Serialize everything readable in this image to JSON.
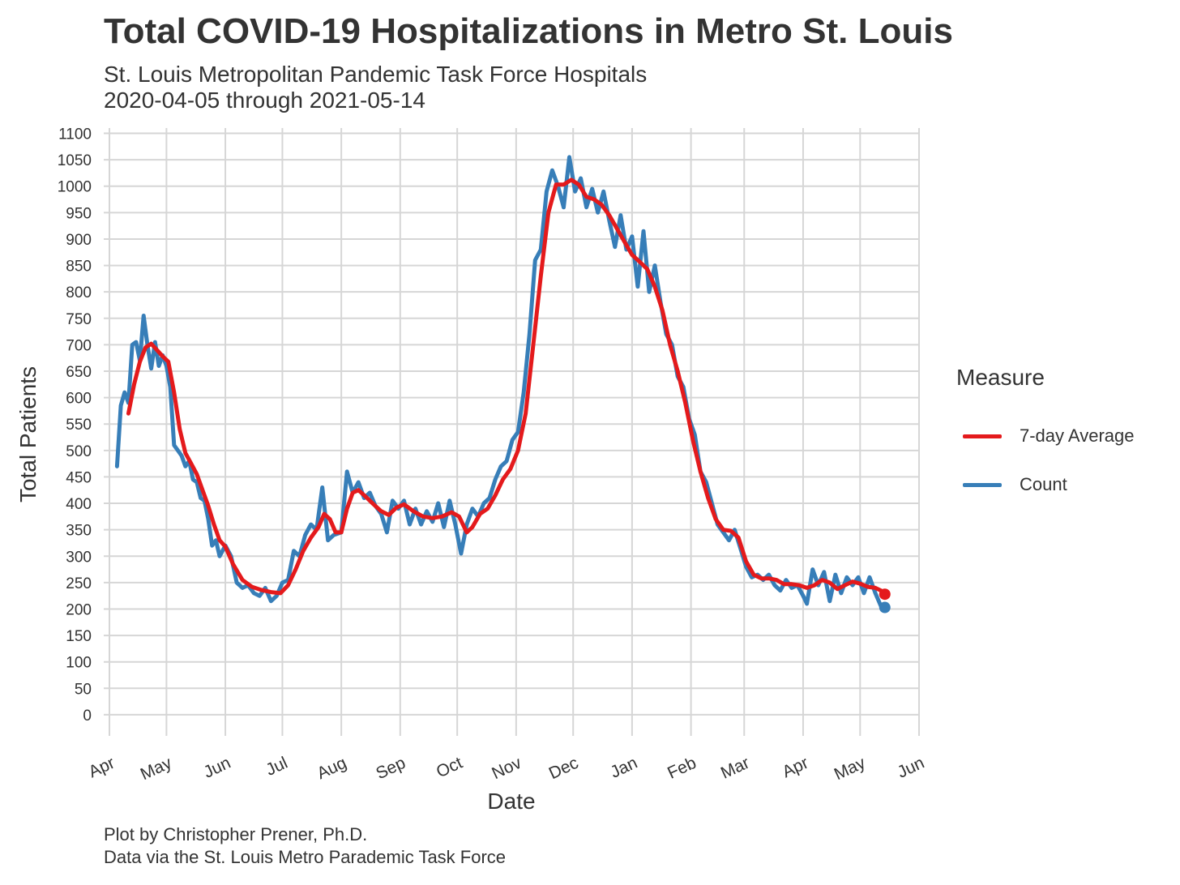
{
  "title": "Total COVID-19 Hospitalizations in Metro St. Louis",
  "subtitle_line1": "St. Louis Metropolitan Pandemic Task Force Hospitals",
  "subtitle_line2": "2020-04-05 through 2021-05-14",
  "caption_line1": "Plot by Christopher Prener, Ph.D.",
  "caption_line2": "Data via the St. Louis Metro Parademic Task Force",
  "legend": {
    "title": "Measure",
    "position": "right",
    "items": [
      {
        "label": "7-day Average",
        "color": "#e41a1c"
      },
      {
        "label": "Count",
        "color": "#377eb8"
      }
    ]
  },
  "chart_data": {
    "type": "line",
    "xlabel": "Date",
    "ylabel": "Total Patients",
    "x_ticks": [
      "2020-04-01",
      "2020-05-01",
      "2020-06-01",
      "2020-07-01",
      "2020-08-01",
      "2020-09-01",
      "2020-10-01",
      "2020-11-01",
      "2020-12-01",
      "2021-01-01",
      "2021-02-01",
      "2021-03-01",
      "2021-04-01",
      "2021-05-01",
      "2021-06-01"
    ],
    "x_tick_labels": [
      "Apr",
      "May",
      "Jun",
      "Jul",
      "Aug",
      "Sep",
      "Oct",
      "Nov",
      "Dec",
      "Jan",
      "Feb",
      "Mar",
      "Apr",
      "May",
      "Jun"
    ],
    "xlim": [
      "2020-03-29",
      "2021-06-01"
    ],
    "ylim": [
      -40,
      1110
    ],
    "y_ticks": [
      0,
      50,
      100,
      150,
      200,
      250,
      300,
      350,
      400,
      450,
      500,
      550,
      600,
      650,
      700,
      750,
      800,
      850,
      900,
      950,
      1000,
      1050,
      1100
    ],
    "grid": true,
    "series": [
      {
        "name": "Count",
        "color": "#377eb8",
        "end_marker": true,
        "points": [
          [
            "2020-04-05",
            470
          ],
          [
            "2020-04-07",
            585
          ],
          [
            "2020-04-09",
            610
          ],
          [
            "2020-04-11",
            590
          ],
          [
            "2020-04-13",
            700
          ],
          [
            "2020-04-15",
            705
          ],
          [
            "2020-04-17",
            670
          ],
          [
            "2020-04-19",
            755
          ],
          [
            "2020-04-21",
            700
          ],
          [
            "2020-04-23",
            655
          ],
          [
            "2020-04-25",
            705
          ],
          [
            "2020-04-27",
            660
          ],
          [
            "2020-04-29",
            680
          ],
          [
            "2020-05-01",
            660
          ],
          [
            "2020-05-03",
            620
          ],
          [
            "2020-05-05",
            510
          ],
          [
            "2020-05-07",
            500
          ],
          [
            "2020-05-09",
            490
          ],
          [
            "2020-05-11",
            470
          ],
          [
            "2020-05-13",
            480
          ],
          [
            "2020-05-15",
            445
          ],
          [
            "2020-05-17",
            440
          ],
          [
            "2020-05-19",
            410
          ],
          [
            "2020-05-21",
            405
          ],
          [
            "2020-05-23",
            370
          ],
          [
            "2020-05-25",
            320
          ],
          [
            "2020-05-27",
            330
          ],
          [
            "2020-05-29",
            300
          ],
          [
            "2020-06-01",
            320
          ],
          [
            "2020-06-04",
            300
          ],
          [
            "2020-06-07",
            250
          ],
          [
            "2020-06-10",
            240
          ],
          [
            "2020-06-13",
            245
          ],
          [
            "2020-06-16",
            230
          ],
          [
            "2020-06-19",
            225
          ],
          [
            "2020-06-22",
            240
          ],
          [
            "2020-06-25",
            215
          ],
          [
            "2020-06-28",
            225
          ],
          [
            "2020-07-01",
            250
          ],
          [
            "2020-07-04",
            255
          ],
          [
            "2020-07-07",
            310
          ],
          [
            "2020-07-10",
            300
          ],
          [
            "2020-07-13",
            340
          ],
          [
            "2020-07-16",
            360
          ],
          [
            "2020-07-19",
            350
          ],
          [
            "2020-07-22",
            430
          ],
          [
            "2020-07-25",
            330
          ],
          [
            "2020-07-28",
            340
          ],
          [
            "2020-08-01",
            345
          ],
          [
            "2020-08-04",
            460
          ],
          [
            "2020-08-07",
            420
          ],
          [
            "2020-08-10",
            440
          ],
          [
            "2020-08-13",
            410
          ],
          [
            "2020-08-16",
            420
          ],
          [
            "2020-08-19",
            395
          ],
          [
            "2020-08-22",
            380
          ],
          [
            "2020-08-25",
            345
          ],
          [
            "2020-08-28",
            405
          ],
          [
            "2020-08-31",
            390
          ],
          [
            "2020-09-03",
            405
          ],
          [
            "2020-09-06",
            360
          ],
          [
            "2020-09-09",
            390
          ],
          [
            "2020-09-12",
            360
          ],
          [
            "2020-09-15",
            385
          ],
          [
            "2020-09-18",
            365
          ],
          [
            "2020-09-21",
            400
          ],
          [
            "2020-09-24",
            355
          ],
          [
            "2020-09-27",
            405
          ],
          [
            "2020-09-30",
            360
          ],
          [
            "2020-10-03",
            305
          ],
          [
            "2020-10-06",
            360
          ],
          [
            "2020-10-09",
            390
          ],
          [
            "2020-10-12",
            375
          ],
          [
            "2020-10-15",
            400
          ],
          [
            "2020-10-18",
            410
          ],
          [
            "2020-10-21",
            445
          ],
          [
            "2020-10-24",
            470
          ],
          [
            "2020-10-27",
            480
          ],
          [
            "2020-10-30",
            520
          ],
          [
            "2020-11-02",
            535
          ],
          [
            "2020-11-05",
            610
          ],
          [
            "2020-11-08",
            720
          ],
          [
            "2020-11-11",
            860
          ],
          [
            "2020-11-14",
            880
          ],
          [
            "2020-11-17",
            990
          ],
          [
            "2020-11-20",
            1030
          ],
          [
            "2020-11-23",
            1000
          ],
          [
            "2020-11-26",
            960
          ],
          [
            "2020-11-29",
            1055
          ],
          [
            "2020-12-02",
            990
          ],
          [
            "2020-12-05",
            1015
          ],
          [
            "2020-12-08",
            960
          ],
          [
            "2020-12-11",
            995
          ],
          [
            "2020-12-14",
            950
          ],
          [
            "2020-12-17",
            990
          ],
          [
            "2020-12-20",
            935
          ],
          [
            "2020-12-23",
            885
          ],
          [
            "2020-12-26",
            945
          ],
          [
            "2020-12-29",
            880
          ],
          [
            "2021-01-01",
            905
          ],
          [
            "2021-01-04",
            810
          ],
          [
            "2021-01-07",
            915
          ],
          [
            "2021-01-10",
            800
          ],
          [
            "2021-01-13",
            850
          ],
          [
            "2021-01-16",
            780
          ],
          [
            "2021-01-19",
            720
          ],
          [
            "2021-01-22",
            700
          ],
          [
            "2021-01-25",
            640
          ],
          [
            "2021-01-28",
            620
          ],
          [
            "2021-01-31",
            560
          ],
          [
            "2021-02-03",
            530
          ],
          [
            "2021-02-06",
            460
          ],
          [
            "2021-02-09",
            440
          ],
          [
            "2021-02-12",
            400
          ],
          [
            "2021-02-15",
            360
          ],
          [
            "2021-02-18",
            345
          ],
          [
            "2021-02-21",
            330
          ],
          [
            "2021-02-24",
            350
          ],
          [
            "2021-02-27",
            315
          ],
          [
            "2021-03-02",
            280
          ],
          [
            "2021-03-05",
            260
          ],
          [
            "2021-03-08",
            265
          ],
          [
            "2021-03-11",
            255
          ],
          [
            "2021-03-14",
            265
          ],
          [
            "2021-03-17",
            245
          ],
          [
            "2021-03-20",
            235
          ],
          [
            "2021-03-23",
            255
          ],
          [
            "2021-03-26",
            240
          ],
          [
            "2021-03-29",
            245
          ],
          [
            "2021-04-01",
            225
          ],
          [
            "2021-04-03",
            210
          ],
          [
            "2021-04-06",
            275
          ],
          [
            "2021-04-09",
            245
          ],
          [
            "2021-04-12",
            270
          ],
          [
            "2021-04-15",
            215
          ],
          [
            "2021-04-18",
            265
          ],
          [
            "2021-04-21",
            230
          ],
          [
            "2021-04-24",
            260
          ],
          [
            "2021-04-27",
            245
          ],
          [
            "2021-04-30",
            260
          ],
          [
            "2021-05-03",
            230
          ],
          [
            "2021-05-06",
            260
          ],
          [
            "2021-05-09",
            230
          ],
          [
            "2021-05-12",
            205
          ],
          [
            "2021-05-14",
            203
          ]
        ]
      },
      {
        "name": "7-day Average",
        "color": "#e41a1c",
        "end_marker": true,
        "points": [
          [
            "2020-04-11",
            570
          ],
          [
            "2020-04-14",
            625
          ],
          [
            "2020-04-17",
            668
          ],
          [
            "2020-04-20",
            695
          ],
          [
            "2020-04-23",
            702
          ],
          [
            "2020-04-26",
            690
          ],
          [
            "2020-04-29",
            678
          ],
          [
            "2020-05-02",
            668
          ],
          [
            "2020-05-05",
            610
          ],
          [
            "2020-05-08",
            540
          ],
          [
            "2020-05-11",
            495
          ],
          [
            "2020-05-14",
            475
          ],
          [
            "2020-05-17",
            455
          ],
          [
            "2020-05-20",
            425
          ],
          [
            "2020-05-23",
            395
          ],
          [
            "2020-05-26",
            360
          ],
          [
            "2020-05-29",
            330
          ],
          [
            "2020-06-01",
            318
          ],
          [
            "2020-06-05",
            285
          ],
          [
            "2020-06-10",
            255
          ],
          [
            "2020-06-15",
            242
          ],
          [
            "2020-06-20",
            236
          ],
          [
            "2020-06-25",
            232
          ],
          [
            "2020-06-30",
            230
          ],
          [
            "2020-07-04",
            245
          ],
          [
            "2020-07-08",
            275
          ],
          [
            "2020-07-12",
            310
          ],
          [
            "2020-07-16",
            335
          ],
          [
            "2020-07-20",
            355
          ],
          [
            "2020-07-23",
            380
          ],
          [
            "2020-07-26",
            370
          ],
          [
            "2020-07-29",
            345
          ],
          [
            "2020-08-01",
            345
          ],
          [
            "2020-08-04",
            390
          ],
          [
            "2020-08-07",
            420
          ],
          [
            "2020-08-10",
            425
          ],
          [
            "2020-08-14",
            412
          ],
          [
            "2020-08-18",
            398
          ],
          [
            "2020-08-22",
            385
          ],
          [
            "2020-08-26",
            378
          ],
          [
            "2020-08-30",
            392
          ],
          [
            "2020-09-03",
            398
          ],
          [
            "2020-09-08",
            385
          ],
          [
            "2020-09-13",
            375
          ],
          [
            "2020-09-18",
            372
          ],
          [
            "2020-09-23",
            375
          ],
          [
            "2020-09-28",
            383
          ],
          [
            "2020-10-02",
            375
          ],
          [
            "2020-10-06",
            345
          ],
          [
            "2020-10-09",
            355
          ],
          [
            "2020-10-13",
            380
          ],
          [
            "2020-10-17",
            390
          ],
          [
            "2020-10-21",
            415
          ],
          [
            "2020-10-25",
            445
          ],
          [
            "2020-10-29",
            465
          ],
          [
            "2020-11-02",
            500
          ],
          [
            "2020-11-06",
            570
          ],
          [
            "2020-11-10",
            700
          ],
          [
            "2020-11-14",
            830
          ],
          [
            "2020-11-18",
            950
          ],
          [
            "2020-11-22",
            1003
          ],
          [
            "2020-11-26",
            1003
          ],
          [
            "2020-11-30",
            1012
          ],
          [
            "2020-12-04",
            1003
          ],
          [
            "2020-12-08",
            980
          ],
          [
            "2020-12-12",
            975
          ],
          [
            "2020-12-16",
            965
          ],
          [
            "2020-12-20",
            945
          ],
          [
            "2020-12-24",
            920
          ],
          [
            "2020-12-28",
            895
          ],
          [
            "2021-01-01",
            870
          ],
          [
            "2021-01-05",
            857
          ],
          [
            "2021-01-09",
            843
          ],
          [
            "2021-01-13",
            810
          ],
          [
            "2021-01-17",
            765
          ],
          [
            "2021-01-21",
            700
          ],
          [
            "2021-01-25",
            650
          ],
          [
            "2021-01-29",
            590
          ],
          [
            "2021-02-02",
            520
          ],
          [
            "2021-02-06",
            460
          ],
          [
            "2021-02-10",
            410
          ],
          [
            "2021-02-14",
            370
          ],
          [
            "2021-02-18",
            350
          ],
          [
            "2021-02-22",
            348
          ],
          [
            "2021-02-26",
            335
          ],
          [
            "2021-03-02",
            290
          ],
          [
            "2021-03-06",
            265
          ],
          [
            "2021-03-10",
            258
          ],
          [
            "2021-03-14",
            258
          ],
          [
            "2021-03-18",
            255
          ],
          [
            "2021-03-22",
            247
          ],
          [
            "2021-03-26",
            247
          ],
          [
            "2021-03-30",
            245
          ],
          [
            "2021-04-03",
            240
          ],
          [
            "2021-04-07",
            245
          ],
          [
            "2021-04-11",
            255
          ],
          [
            "2021-04-15",
            250
          ],
          [
            "2021-04-19",
            238
          ],
          [
            "2021-04-23",
            245
          ],
          [
            "2021-04-27",
            252
          ],
          [
            "2021-05-01",
            248
          ],
          [
            "2021-05-05",
            242
          ],
          [
            "2021-05-09",
            240
          ],
          [
            "2021-05-12",
            235
          ],
          [
            "2021-05-14",
            228
          ]
        ]
      }
    ]
  }
}
